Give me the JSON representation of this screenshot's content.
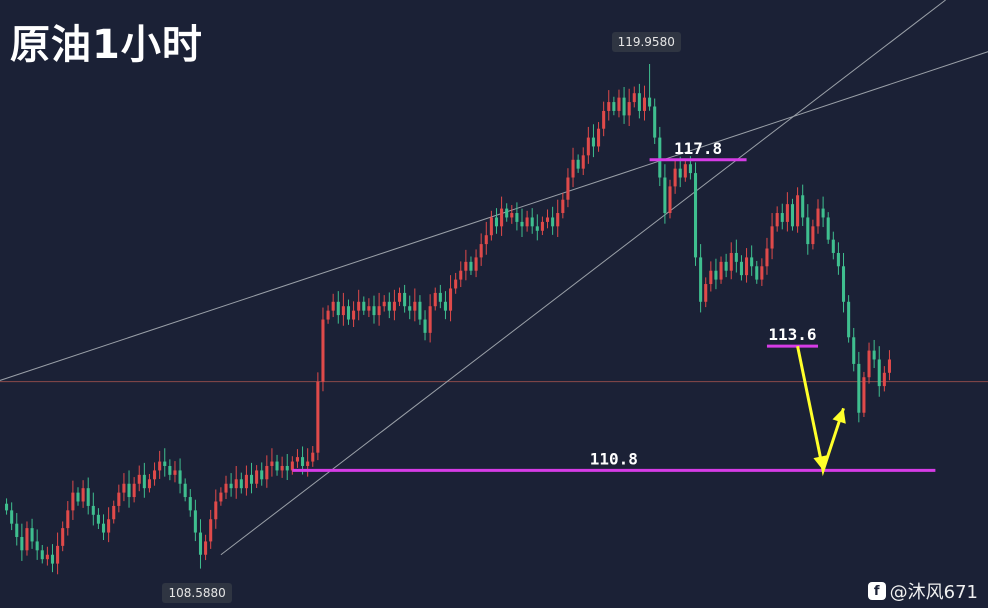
{
  "title": "原油1小时",
  "watermark": {
    "icon": "weibo-icon",
    "icon_glyph": "f",
    "text": "@沐风671"
  },
  "colors": {
    "background": "#1b2136",
    "up": "#e04a4a",
    "down": "#3fbf8f",
    "level_line": "#d63ce6",
    "trend_line": "#9aa0a8",
    "arrow": "#ffff2a",
    "current_price_line": "#8a4a4a"
  },
  "chart_data": {
    "type": "candlestick",
    "title": "原油1小时",
    "ylim": [
      107.7,
      121.4
    ],
    "high_marker": 119.958,
    "low_marker": 108.588,
    "high_label": "119.9580",
    "low_label": "108.5880",
    "current_price": 112.8,
    "levels": [
      {
        "label": "117.8",
        "value": 117.8
      },
      {
        "label": "113.6",
        "value": 113.6
      },
      {
        "label": "110.8",
        "value": 110.8
      }
    ],
    "closes": [
      109.9,
      109.6,
      109.3,
      109.0,
      109.5,
      109.2,
      109.0,
      108.8,
      108.9,
      108.7,
      109.1,
      109.5,
      109.9,
      110.3,
      110.1,
      110.4,
      110.0,
      109.8,
      109.6,
      109.4,
      109.7,
      110.0,
      110.3,
      110.5,
      110.2,
      110.5,
      110.7,
      110.4,
      110.6,
      110.8,
      111.0,
      110.9,
      110.7,
      110.8,
      110.5,
      110.2,
      109.9,
      109.4,
      108.9,
      109.2,
      109.7,
      110.1,
      110.3,
      110.5,
      110.4,
      110.6,
      110.4,
      110.7,
      110.5,
      110.8,
      110.6,
      110.9,
      111.0,
      110.8,
      110.9,
      110.8,
      111.0,
      111.1,
      110.9,
      111.0,
      111.2,
      112.8,
      114.2,
      114.4,
      114.6,
      114.3,
      114.5,
      114.2,
      114.4,
      114.6,
      114.4,
      114.5,
      114.3,
      114.5,
      114.6,
      114.4,
      114.6,
      114.8,
      114.5,
      114.4,
      114.6,
      114.2,
      113.9,
      114.5,
      114.8,
      114.6,
      114.4,
      114.9,
      115.1,
      115.3,
      115.5,
      115.3,
      115.6,
      115.9,
      116.1,
      116.5,
      116.3,
      116.7,
      116.5,
      116.6,
      116.4,
      116.3,
      116.5,
      116.3,
      116.2,
      116.4,
      116.5,
      116.3,
      116.6,
      116.9,
      117.4,
      117.8,
      117.6,
      117.9,
      118.3,
      118.1,
      118.5,
      118.9,
      119.1,
      118.9,
      119.2,
      118.8,
      119.1,
      119.3,
      118.9,
      119.2,
      119.0,
      118.3,
      117.4,
      116.6,
      117.2,
      117.6,
      117.4,
      117.7,
      117.5,
      115.6,
      114.6,
      115.0,
      115.3,
      115.1,
      115.5,
      115.3,
      115.7,
      115.5,
      115.2,
      115.6,
      115.4,
      115.1,
      115.4,
      115.8,
      116.3,
      116.6,
      116.4,
      116.8,
      116.3,
      117.0,
      116.5,
      115.9,
      116.3,
      116.7,
      116.5,
      116.0,
      115.7,
      115.4,
      114.6,
      113.8,
      113.2,
      112.1,
      112.9,
      113.5,
      113.3,
      112.7,
      113.0,
      113.3
    ]
  },
  "axis_labels": {
    "high": "119.9580",
    "low": "108.5880"
  }
}
